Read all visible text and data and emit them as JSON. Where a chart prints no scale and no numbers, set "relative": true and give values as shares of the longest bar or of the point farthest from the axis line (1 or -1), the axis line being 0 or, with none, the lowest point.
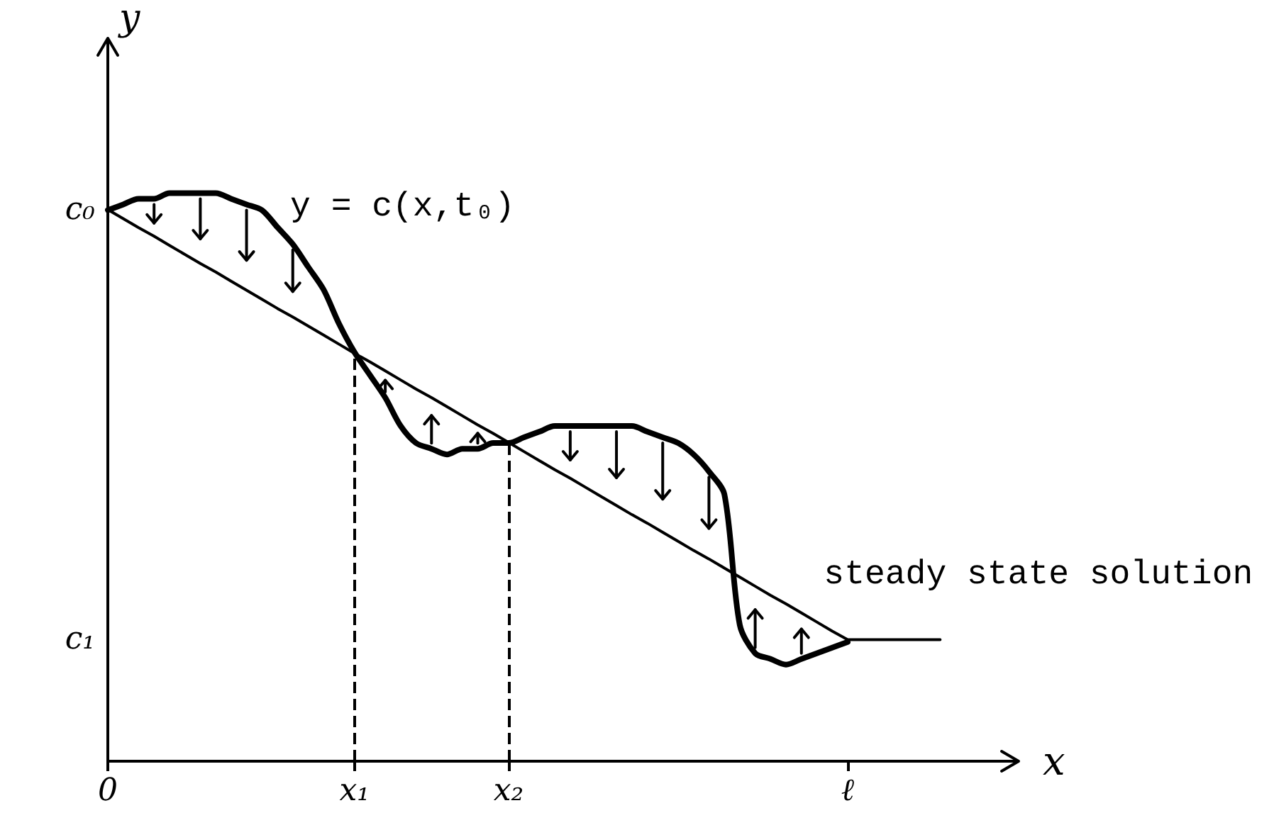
{
  "chart_data": {
    "type": "line",
    "relative": true,
    "xlabel": "x",
    "ylabel": "y",
    "categories": [
      "0",
      null,
      null,
      null,
      null,
      null,
      null,
      null,
      null,
      null,
      null,
      null,
      null,
      null,
      null,
      null,
      "x₁",
      null,
      null,
      null,
      null,
      null,
      null,
      null,
      null,
      null,
      "x₂",
      null,
      null,
      null,
      null,
      null,
      null,
      null,
      null,
      null,
      null,
      null,
      null,
      null,
      null,
      null,
      null,
      null,
      null,
      null,
      null,
      null,
      "ℓ",
      null,
      null,
      null,
      null,
      null,
      null,
      null,
      null,
      null,
      null,
      null
    ],
    "annotations": [
      "c₀",
      "c₁"
    ],
    "series": [
      {
        "name": "y = c(x,t₀)",
        "color": "#000000",
        "values": [
          0.97,
          0.98,
          0.99,
          0.99,
          1.0,
          1.0,
          1.0,
          1.0,
          0.99,
          0.98,
          0.97,
          0.94,
          0.91,
          0.87,
          0.83,
          0.77,
          0.72,
          0.68,
          0.64,
          0.59,
          0.56,
          0.55,
          0.54,
          0.55,
          0.55,
          0.56,
          0.56,
          0.57,
          0.58,
          0.59,
          0.59,
          0.59,
          0.59,
          0.59,
          0.59,
          0.58,
          0.57,
          0.56,
          0.54,
          0.51,
          0.47,
          0.24,
          0.19,
          0.18,
          0.17,
          0.18,
          0.19,
          0.2,
          0.21,
          null,
          null,
          null,
          null,
          null,
          null,
          null,
          null,
          null,
          null,
          null
        ]
      },
      {
        "name": "steady state solution",
        "color": "#000000",
        "values": [
          0.971,
          0.955,
          0.939,
          0.924,
          0.908,
          0.892,
          0.876,
          0.861,
          0.845,
          0.829,
          0.813,
          0.797,
          0.782,
          0.766,
          0.75,
          0.734,
          0.718,
          0.703,
          0.687,
          0.671,
          0.655,
          0.64,
          0.624,
          0.608,
          0.592,
          0.577,
          0.561,
          0.545,
          0.529,
          0.513,
          0.498,
          0.482,
          0.466,
          0.45,
          0.434,
          0.419,
          0.403,
          0.387,
          0.371,
          0.356,
          0.34,
          0.324,
          0.308,
          0.292,
          0.277,
          0.261,
          0.245,
          0.229,
          0.214,
          0.214,
          0.214,
          0.214,
          0.214,
          0.214,
          0.214,
          null,
          null,
          null,
          null,
          null
        ]
      }
    ],
    "ref_lines": [
      {
        "axis": "x",
        "value": "x₁",
        "line_style": "dashed"
      },
      {
        "axis": "x",
        "value": "x₂",
        "line_style": "dashed"
      }
    ],
    "grid": false,
    "marker": "none",
    "line_style": "solid"
  }
}
